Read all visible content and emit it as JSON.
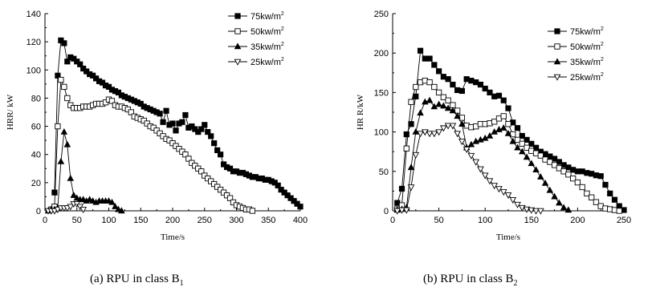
{
  "chart_data": [
    {
      "type": "line",
      "xlabel": "Time/s",
      "ylabel": "HRR/ kW",
      "xlim": [
        0,
        400
      ],
      "ylim": [
        0,
        140
      ],
      "xticks": [
        0,
        50,
        100,
        150,
        200,
        250,
        300,
        350,
        400
      ],
      "yticks": [
        0,
        20,
        40,
        60,
        80,
        100,
        120,
        140
      ],
      "legend_position": "top-right",
      "grid": false,
      "series": [
        {
          "name": "75kw/m",
          "superscript": "2",
          "marker": "square-filled",
          "x": [
            15,
            20,
            25,
            30,
            35,
            40,
            45,
            50,
            55,
            60,
            65,
            70,
            75,
            80,
            85,
            90,
            95,
            100,
            105,
            110,
            115,
            120,
            125,
            130,
            135,
            140,
            145,
            150,
            155,
            160,
            165,
            170,
            175,
            180,
            185,
            190,
            195,
            200,
            205,
            210,
            215,
            220,
            225,
            230,
            235,
            240,
            245,
            250,
            255,
            260,
            265,
            270,
            275,
            280,
            285,
            290,
            295,
            300,
            305,
            310,
            315,
            320,
            325,
            330,
            335,
            340,
            345,
            350,
            355,
            360,
            365,
            370,
            375,
            380,
            385,
            390,
            395,
            400
          ],
          "y": [
            13,
            96,
            121,
            119,
            106,
            109,
            108,
            106,
            104,
            101,
            99,
            97,
            96,
            94,
            92,
            91,
            89,
            88,
            86,
            85,
            84,
            82,
            81,
            80,
            79,
            78,
            77,
            76,
            74,
            73,
            72,
            71,
            70,
            69,
            63,
            71,
            61,
            62,
            57,
            62,
            63,
            68,
            59,
            60,
            58,
            56,
            58,
            61,
            56,
            53,
            48,
            43,
            40,
            33,
            31,
            30,
            28,
            28,
            27,
            27,
            26,
            25,
            24,
            24,
            23,
            23,
            22,
            22,
            21,
            20,
            18,
            15,
            13,
            11,
            9,
            7,
            5,
            3
          ]
        },
        {
          "name": "50kw/m",
          "superscript": "2",
          "marker": "square-open",
          "x": [
            10,
            15,
            20,
            25,
            30,
            35,
            40,
            45,
            50,
            55,
            60,
            65,
            70,
            75,
            80,
            85,
            90,
            95,
            100,
            105,
            110,
            115,
            120,
            125,
            130,
            135,
            140,
            145,
            150,
            155,
            160,
            165,
            170,
            175,
            180,
            185,
            190,
            195,
            200,
            205,
            210,
            215,
            220,
            225,
            230,
            235,
            240,
            245,
            250,
            255,
            260,
            265,
            270,
            275,
            280,
            285,
            290,
            295,
            300,
            305,
            310,
            315,
            320,
            325
          ],
          "y": [
            1,
            3,
            60,
            93,
            88,
            80,
            75,
            73,
            73,
            73,
            74,
            74,
            74,
            75,
            76,
            76,
            76,
            77,
            79,
            78,
            75,
            74,
            74,
            73,
            72,
            70,
            67,
            66,
            65,
            64,
            62,
            60,
            59,
            57,
            55,
            53,
            51,
            50,
            48,
            46,
            44,
            42,
            40,
            37,
            34,
            32,
            30,
            28,
            25,
            23,
            21,
            19,
            17,
            15,
            13,
            11,
            9,
            6,
            4,
            3,
            2,
            1,
            1,
            0
          ]
        },
        {
          "name": "35kw/m",
          "superscript": "2",
          "marker": "triangle-filled",
          "x": [
            5,
            10,
            15,
            20,
            25,
            30,
            35,
            40,
            45,
            50,
            55,
            60,
            65,
            70,
            75,
            80,
            85,
            90,
            95,
            100,
            105,
            110,
            115,
            120
          ],
          "y": [
            0,
            1,
            1,
            2,
            35,
            56,
            47,
            23,
            11,
            9,
            8,
            8,
            7,
            8,
            7,
            6,
            7,
            7,
            7,
            7,
            6,
            3,
            1,
            0
          ]
        },
        {
          "name": "25kw/m",
          "superscript": "2",
          "marker": "triangle-open",
          "x": [
            5,
            10,
            15,
            20,
            25,
            30,
            35,
            40,
            45,
            50,
            55,
            60
          ],
          "y": [
            0,
            0,
            0,
            1,
            2,
            2,
            2,
            3,
            5,
            5,
            3,
            1
          ]
        }
      ]
    },
    {
      "type": "line",
      "xlabel": "Time/s",
      "ylabel": "HR R/kW",
      "xlim": [
        0,
        250
      ],
      "ylim": [
        0,
        250
      ],
      "xticks": [
        0,
        50,
        100,
        150,
        200,
        250
      ],
      "yticks": [
        0,
        50,
        100,
        150,
        200,
        250
      ],
      "legend_position": "top-right",
      "grid": false,
      "series": [
        {
          "name": "75kw/m",
          "superscript": "2",
          "marker": "square-filled",
          "x": [
            5,
            10,
            15,
            20,
            25,
            30,
            35,
            40,
            45,
            50,
            55,
            60,
            65,
            70,
            75,
            80,
            85,
            90,
            95,
            100,
            105,
            110,
            115,
            120,
            125,
            130,
            135,
            140,
            145,
            150,
            155,
            160,
            165,
            170,
            175,
            180,
            185,
            190,
            195,
            200,
            205,
            210,
            215,
            220,
            225,
            230,
            235,
            240,
            245,
            250
          ],
          "y": [
            10,
            28,
            97,
            110,
            145,
            203,
            193,
            193,
            185,
            177,
            170,
            167,
            160,
            153,
            152,
            167,
            165,
            163,
            160,
            155,
            150,
            145,
            146,
            140,
            130,
            112,
            105,
            95,
            90,
            85,
            80,
            75,
            72,
            69,
            66,
            62,
            58,
            55,
            52,
            50,
            50,
            48,
            47,
            45,
            44,
            33,
            22,
            14,
            6,
            1
          ]
        },
        {
          "name": "50kw/m",
          "superscript": "2",
          "marker": "square-open",
          "x": [
            5,
            10,
            15,
            20,
            25,
            30,
            35,
            40,
            45,
            50,
            55,
            60,
            65,
            70,
            75,
            80,
            85,
            90,
            95,
            100,
            105,
            110,
            115,
            120,
            125,
            130,
            135,
            140,
            145,
            150,
            155,
            160,
            165,
            170,
            175,
            180,
            185,
            190,
            195,
            200,
            205,
            210,
            215,
            220,
            225,
            230,
            235,
            240,
            245
          ],
          "y": [
            2,
            7,
            79,
            138,
            157,
            163,
            165,
            163,
            157,
            150,
            144,
            140,
            134,
            127,
            118,
            108,
            106,
            107,
            110,
            110,
            111,
            113,
            117,
            120,
            110,
            97,
            90,
            85,
            80,
            76,
            73,
            70,
            65,
            62,
            58,
            54,
            50,
            46,
            41,
            36,
            30,
            22,
            17,
            11,
            6,
            3,
            2,
            1,
            0
          ]
        },
        {
          "name": "35kw/m",
          "superscript": "2",
          "marker": "triangle-filled",
          "x": [
            5,
            10,
            15,
            20,
            25,
            30,
            35,
            40,
            45,
            50,
            55,
            60,
            65,
            70,
            75,
            80,
            85,
            90,
            95,
            100,
            105,
            110,
            115,
            120,
            125,
            130,
            135,
            140,
            145,
            150,
            155,
            160,
            165,
            170,
            175,
            180,
            185,
            190
          ],
          "y": [
            1,
            2,
            4,
            55,
            100,
            124,
            138,
            140,
            132,
            135,
            133,
            130,
            127,
            120,
            110,
            80,
            84,
            88,
            90,
            92,
            95,
            100,
            103,
            105,
            98,
            88,
            80,
            75,
            68,
            60,
            52,
            43,
            35,
            26,
            18,
            10,
            4,
            1
          ]
        },
        {
          "name": "25kw/m",
          "superscript": "2",
          "marker": "triangle-open",
          "x": [
            5,
            10,
            15,
            20,
            25,
            30,
            35,
            40,
            45,
            50,
            55,
            60,
            65,
            70,
            75,
            80,
            85,
            90,
            95,
            100,
            105,
            110,
            115,
            120,
            125,
            130,
            135,
            140,
            145,
            150,
            155,
            160
          ],
          "y": [
            0,
            1,
            1,
            30,
            71,
            98,
            100,
            98,
            98,
            100,
            105,
            108,
            108,
            98,
            88,
            78,
            70,
            62,
            53,
            45,
            38,
            32,
            28,
            24,
            20,
            14,
            8,
            4,
            2,
            1,
            0,
            0
          ]
        }
      ]
    }
  ],
  "captions": [
    {
      "prefix": "(a) RPU in class B",
      "sub": "1"
    },
    {
      "prefix": "(b) RPU in class B",
      "sub": "2"
    }
  ]
}
